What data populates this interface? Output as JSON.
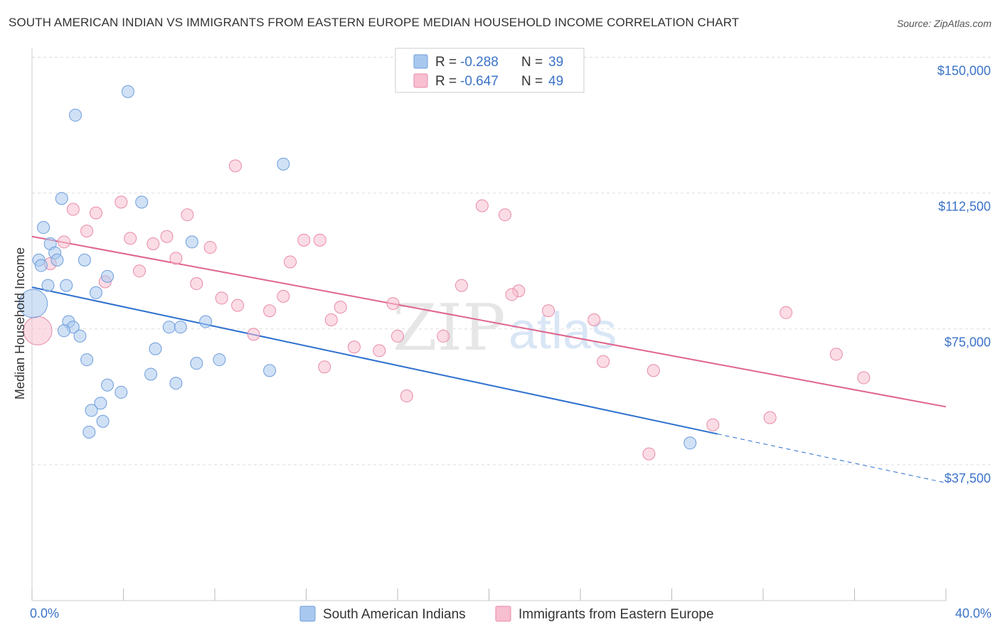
{
  "title": "SOUTH AMERICAN INDIAN VS IMMIGRANTS FROM EASTERN EUROPE MEDIAN HOUSEHOLD INCOME CORRELATION CHART",
  "source": "Source: ZipAtlas.com",
  "watermark": {
    "zip": "ZIP",
    "atlas": "atlas"
  },
  "colors": {
    "blue": "#a9c8ef",
    "blue_stroke": "#6d9ddb",
    "blue_line": "#2b6fcf",
    "pink": "#f7bfd0",
    "pink_stroke": "#e88aa8",
    "pink_line": "#e0648c",
    "value_text": "#3b73c8",
    "grid": "#dddddd"
  },
  "chart_data": {
    "type": "scatter",
    "ylabel": "Median Household Income",
    "xlim": [
      0,
      40
    ],
    "ylim": [
      0,
      155000
    ],
    "x_tick_labels": [
      "0.0%",
      "40.0%"
    ],
    "y_ticks": [
      {
        "value": 150000,
        "label": "$150,000"
      },
      {
        "value": 112500,
        "label": "$112,500"
      },
      {
        "value": 75000,
        "label": "$75,000"
      },
      {
        "value": 37500,
        "label": "$37,500"
      }
    ],
    "legend_top": [
      {
        "r_label": "R =",
        "r_value": "-0.288",
        "n_label": "N =",
        "n_value": "39",
        "color_key": "blue"
      },
      {
        "r_label": "R =",
        "r_value": "-0.647",
        "n_label": "N =",
        "n_value": "49",
        "color_key": "pink"
      }
    ],
    "series": [
      {
        "name": "South American Indians",
        "color_key": "blue",
        "points": [
          [
            4.2,
            140500
          ],
          [
            1.9,
            134000
          ],
          [
            11.0,
            120500
          ],
          [
            1.3,
            111000
          ],
          [
            4.8,
            110000
          ],
          [
            0.5,
            103000
          ],
          [
            7.0,
            99000
          ],
          [
            0.8,
            98500
          ],
          [
            1.0,
            96000
          ],
          [
            0.3,
            94000
          ],
          [
            2.3,
            94000
          ],
          [
            1.1,
            94000
          ],
          [
            0.4,
            92500
          ],
          [
            3.3,
            89500
          ],
          [
            0.7,
            87000
          ],
          [
            1.5,
            87000
          ],
          [
            2.8,
            85000
          ],
          [
            0.05,
            82000,
            "large"
          ],
          [
            1.6,
            77000
          ],
          [
            7.6,
            77000
          ],
          [
            1.8,
            75500
          ],
          [
            6.0,
            75500
          ],
          [
            6.5,
            75500
          ],
          [
            1.4,
            74500
          ],
          [
            2.1,
            73000
          ],
          [
            5.4,
            69500
          ],
          [
            2.4,
            66500
          ],
          [
            8.2,
            66500
          ],
          [
            7.2,
            65500
          ],
          [
            10.4,
            63500
          ],
          [
            5.2,
            62500
          ],
          [
            6.3,
            60000
          ],
          [
            3.3,
            59500
          ],
          [
            3.9,
            57500
          ],
          [
            3.0,
            54500
          ],
          [
            2.6,
            52500
          ],
          [
            3.1,
            49500
          ],
          [
            2.5,
            46500
          ],
          [
            28.8,
            43500
          ]
        ]
      },
      {
        "name": "Immigrants from Eastern Europe",
        "color_key": "pink",
        "points": [
          [
            8.9,
            120000
          ],
          [
            3.9,
            110000
          ],
          [
            19.7,
            109000
          ],
          [
            1.8,
            108000
          ],
          [
            2.8,
            107000
          ],
          [
            20.7,
            106500
          ],
          [
            6.8,
            106500
          ],
          [
            2.4,
            102000
          ],
          [
            5.9,
            100500
          ],
          [
            4.3,
            100000
          ],
          [
            11.9,
            99500
          ],
          [
            12.6,
            99500
          ],
          [
            1.4,
            99000
          ],
          [
            5.3,
            98500
          ],
          [
            7.8,
            97500
          ],
          [
            6.3,
            94500
          ],
          [
            11.3,
            93500
          ],
          [
            0.8,
            93000
          ],
          [
            4.7,
            91000
          ],
          [
            3.2,
            88000
          ],
          [
            7.2,
            87500
          ],
          [
            18.8,
            87000
          ],
          [
            21.3,
            85500
          ],
          [
            21.0,
            84500
          ],
          [
            8.3,
            83500
          ],
          [
            11.0,
            84000
          ],
          [
            9.0,
            81500
          ],
          [
            13.5,
            81000
          ],
          [
            15.8,
            82000
          ],
          [
            10.4,
            80000
          ],
          [
            22.6,
            80000
          ],
          [
            33.0,
            79500
          ],
          [
            13.1,
            77500
          ],
          [
            24.6,
            77500
          ],
          [
            9.7,
            73500
          ],
          [
            16.0,
            73000
          ],
          [
            18.0,
            73000
          ],
          [
            0.25,
            74500,
            "large"
          ],
          [
            14.1,
            70000
          ],
          [
            15.2,
            69000
          ],
          [
            35.2,
            68000
          ],
          [
            25.0,
            66000
          ],
          [
            12.8,
            64500
          ],
          [
            27.2,
            63500
          ],
          [
            36.4,
            61500
          ],
          [
            16.4,
            56500
          ],
          [
            32.3,
            50500
          ],
          [
            29.8,
            48500
          ],
          [
            27.0,
            40500
          ]
        ]
      }
    ],
    "trend_lines": [
      {
        "color_key": "blue",
        "x0": 0,
        "y0": 86500,
        "x1": 30,
        "y1": 46000,
        "dash_to_x": 40,
        "dash_to_y": 32500
      },
      {
        "color_key": "pink",
        "x0": 0,
        "y0": 100500,
        "x1": 40,
        "y1": 53500
      }
    ],
    "legend_bottom": [
      {
        "label": "South American Indians",
        "color_key": "blue"
      },
      {
        "label": "Immigrants from Eastern Europe",
        "color_key": "pink"
      }
    ]
  }
}
